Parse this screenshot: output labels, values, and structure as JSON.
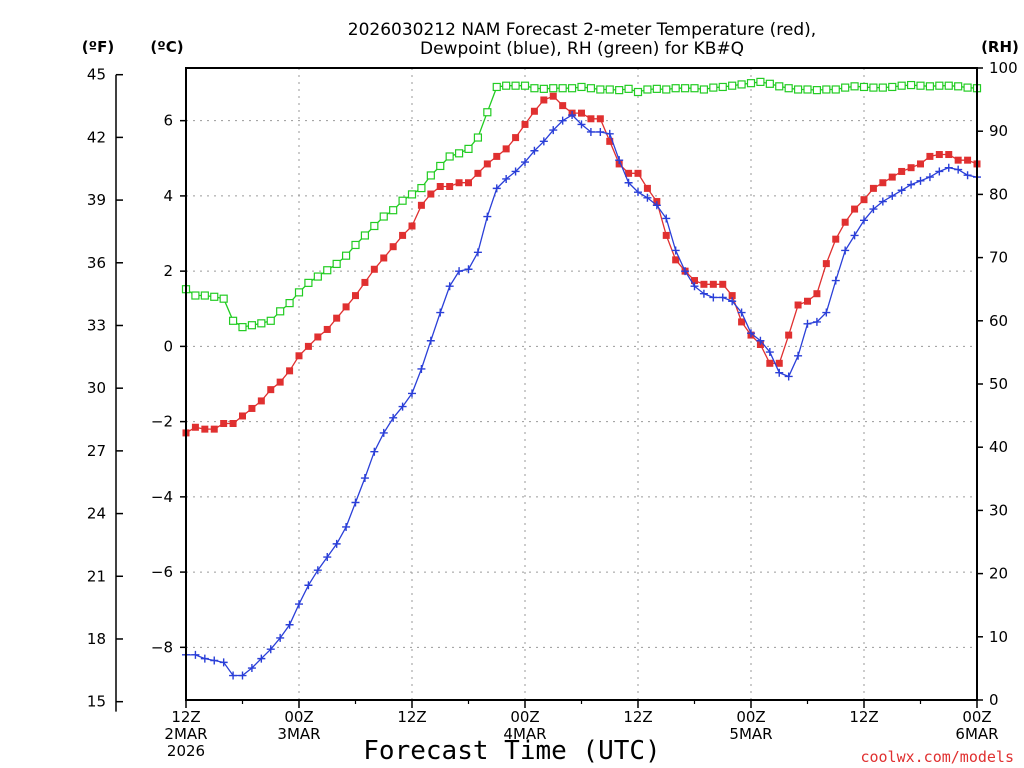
{
  "chart_data": {
    "type": "line",
    "title_line1": "2026030212 NAM Forecast 2-meter Temperature (red),",
    "title_line2": "Dewpoint (blue), RH (green) for KB#Q",
    "xlabel": "Forecast Time (UTC)",
    "credit": "coolwx.com/models",
    "units": {
      "fahrenheit": "(ºF)",
      "celsius": "(ºC)",
      "rh": "(RH)"
    },
    "x_range_hours": [
      0,
      84
    ],
    "celsius_range": [
      -9.4,
      7.4
    ],
    "rh_range": [
      0,
      100
    ],
    "fahrenheit_ticks": [
      "15",
      "18",
      "21",
      "24",
      "27",
      "30",
      "33",
      "36",
      "39",
      "42",
      "45"
    ],
    "celsius_ticks": [
      "−8",
      "−6",
      "−4",
      "−2",
      "0",
      "2",
      "4",
      "6"
    ],
    "rh_ticks": [
      "0",
      "10",
      "20",
      "30",
      "40",
      "50",
      "60",
      "70",
      "80",
      "90",
      "100"
    ],
    "x_ticks": [
      {
        "hour": 0,
        "line1": "12Z",
        "line2": "2MAR",
        "line3": "2026"
      },
      {
        "hour": 12,
        "line1": "00Z",
        "line2": "3MAR",
        "line3": ""
      },
      {
        "hour": 24,
        "line1": "12Z",
        "line2": "",
        "line3": ""
      },
      {
        "hour": 36,
        "line1": "00Z",
        "line2": "4MAR",
        "line3": ""
      },
      {
        "hour": 48,
        "line1": "12Z",
        "line2": "",
        "line3": ""
      },
      {
        "hour": 60,
        "line1": "00Z",
        "line2": "5MAR",
        "line3": ""
      },
      {
        "hour": 72,
        "line1": "12Z",
        "line2": "",
        "line3": ""
      },
      {
        "hour": 84,
        "line1": "00Z",
        "line2": "6MAR",
        "line3": ""
      }
    ],
    "series": [
      {
        "name": "Temperature (°C)",
        "color": "#e03030",
        "axis": "celsius",
        "marker": "filled-square",
        "x": [
          0,
          1,
          2,
          3,
          4,
          5,
          6,
          7,
          8,
          9,
          10,
          11,
          12,
          13,
          14,
          15,
          16,
          17,
          18,
          19,
          20,
          21,
          22,
          23,
          24,
          25,
          26,
          27,
          28,
          29,
          30,
          31,
          32,
          33,
          34,
          35,
          36,
          37,
          38,
          39,
          40,
          41,
          42,
          43,
          44,
          45,
          46,
          47,
          48,
          49,
          50,
          51,
          52,
          53,
          54,
          55,
          56,
          57,
          58,
          59,
          60,
          61,
          62,
          63,
          64,
          65,
          66,
          67,
          68,
          69,
          70,
          71,
          72,
          73,
          74,
          75,
          76,
          77,
          78,
          79,
          80,
          81,
          82,
          83,
          84
        ],
        "values": [
          -2.3,
          -2.15,
          -2.2,
          -2.2,
          -2.05,
          -2.05,
          -1.85,
          -1.65,
          -1.45,
          -1.15,
          -0.95,
          -0.65,
          -0.25,
          0,
          0.25,
          0.45,
          0.75,
          1.05,
          1.35,
          1.7,
          2.05,
          2.35,
          2.65,
          2.95,
          3.2,
          3.75,
          4.05,
          4.25,
          4.25,
          4.35,
          4.35,
          4.6,
          4.85,
          5.05,
          5.25,
          5.55,
          5.9,
          6.25,
          6.55,
          6.65,
          6.4,
          6.2,
          6.2,
          6.05,
          6.05,
          5.45,
          4.85,
          4.6,
          4.6,
          4.2,
          3.85,
          2.95,
          2.3,
          2.0,
          1.75,
          1.65,
          1.65,
          1.65,
          1.35,
          0.65,
          0.3,
          0.05,
          -0.45,
          -0.45,
          0.3,
          1.1,
          1.2,
          1.4,
          2.2,
          2.85,
          3.3,
          3.65,
          3.9,
          4.2,
          4.35,
          4.5,
          4.65,
          4.75,
          4.85,
          5.05,
          5.1,
          5.1,
          4.95,
          4.95,
          4.85
        ]
      },
      {
        "name": "Dewpoint (°C)",
        "color": "#2a3fd8",
        "axis": "celsius",
        "marker": "plus",
        "x": [
          0,
          1,
          2,
          3,
          4,
          5,
          6,
          7,
          8,
          9,
          10,
          11,
          12,
          13,
          14,
          15,
          16,
          17,
          18,
          19,
          20,
          21,
          22,
          23,
          24,
          25,
          26,
          27,
          28,
          29,
          30,
          31,
          32,
          33,
          34,
          35,
          36,
          37,
          38,
          39,
          40,
          41,
          42,
          43,
          44,
          45,
          46,
          47,
          48,
          49,
          50,
          51,
          52,
          53,
          54,
          55,
          56,
          57,
          58,
          59,
          60,
          61,
          62,
          63,
          64,
          65,
          66,
          67,
          68,
          69,
          70,
          71,
          72,
          73,
          74,
          75,
          76,
          77,
          78,
          79,
          80,
          81,
          82,
          83,
          84
        ],
        "values": [
          -8.2,
          -8.2,
          -8.3,
          -8.35,
          -8.4,
          -8.75,
          -8.75,
          -8.55,
          -8.3,
          -8.05,
          -7.75,
          -7.4,
          -6.85,
          -6.35,
          -5.95,
          -5.6,
          -5.25,
          -4.8,
          -4.15,
          -3.5,
          -2.8,
          -2.3,
          -1.9,
          -1.6,
          -1.25,
          -0.6,
          0.15,
          0.9,
          1.6,
          2.0,
          2.05,
          2.5,
          3.45,
          4.2,
          4.45,
          4.65,
          4.9,
          5.2,
          5.45,
          5.75,
          6.0,
          6.15,
          5.9,
          5.7,
          5.7,
          5.65,
          4.95,
          4.35,
          4.1,
          3.95,
          3.75,
          3.4,
          2.55,
          2.0,
          1.6,
          1.4,
          1.3,
          1.3,
          1.2,
          0.9,
          0.35,
          0.15,
          -0.15,
          -0.7,
          -0.8,
          -0.25,
          0.6,
          0.65,
          0.9,
          1.75,
          2.55,
          2.95,
          3.35,
          3.65,
          3.85,
          4.0,
          4.15,
          4.3,
          4.4,
          4.5,
          4.65,
          4.75,
          4.7,
          4.55,
          4.5
        ]
      },
      {
        "name": "RH (%)",
        "color": "#22cc22",
        "axis": "rh",
        "marker": "open-square",
        "x": [
          0,
          1,
          2,
          3,
          4,
          5,
          6,
          7,
          8,
          9,
          10,
          11,
          12,
          13,
          14,
          15,
          16,
          17,
          18,
          19,
          20,
          21,
          22,
          23,
          24,
          25,
          26,
          27,
          28,
          29,
          30,
          31,
          32,
          33,
          34,
          35,
          36,
          37,
          38,
          39,
          40,
          41,
          42,
          43,
          44,
          45,
          46,
          47,
          48,
          49,
          50,
          51,
          52,
          53,
          54,
          55,
          56,
          57,
          58,
          59,
          60,
          61,
          62,
          63,
          64,
          65,
          66,
          67,
          68,
          69,
          70,
          71,
          72,
          73,
          74,
          75,
          76,
          77,
          78,
          79,
          80,
          81,
          82,
          83,
          84
        ],
        "values": [
          65,
          64,
          64,
          63.8,
          63.5,
          60,
          59,
          59.3,
          59.6,
          60,
          61.5,
          62.8,
          64.5,
          66,
          67,
          68,
          69,
          70.3,
          72,
          73.5,
          75,
          76.5,
          77.5,
          79,
          80,
          81,
          83,
          84.5,
          86,
          86.5,
          87.2,
          89,
          93,
          97,
          97.2,
          97.2,
          97.2,
          96.8,
          96.7,
          96.8,
          96.8,
          96.8,
          97,
          96.8,
          96.6,
          96.6,
          96.5,
          96.7,
          96.2,
          96.6,
          96.7,
          96.6,
          96.8,
          96.8,
          96.8,
          96.6,
          96.9,
          97,
          97.2,
          97.4,
          97.6,
          97.8,
          97.5,
          97.1,
          96.8,
          96.6,
          96.6,
          96.5,
          96.6,
          96.6,
          96.9,
          97.1,
          97,
          96.9,
          96.9,
          97,
          97.2,
          97.3,
          97.2,
          97.1,
          97.2,
          97.2,
          97.1,
          96.9,
          96.8
        ]
      }
    ]
  }
}
